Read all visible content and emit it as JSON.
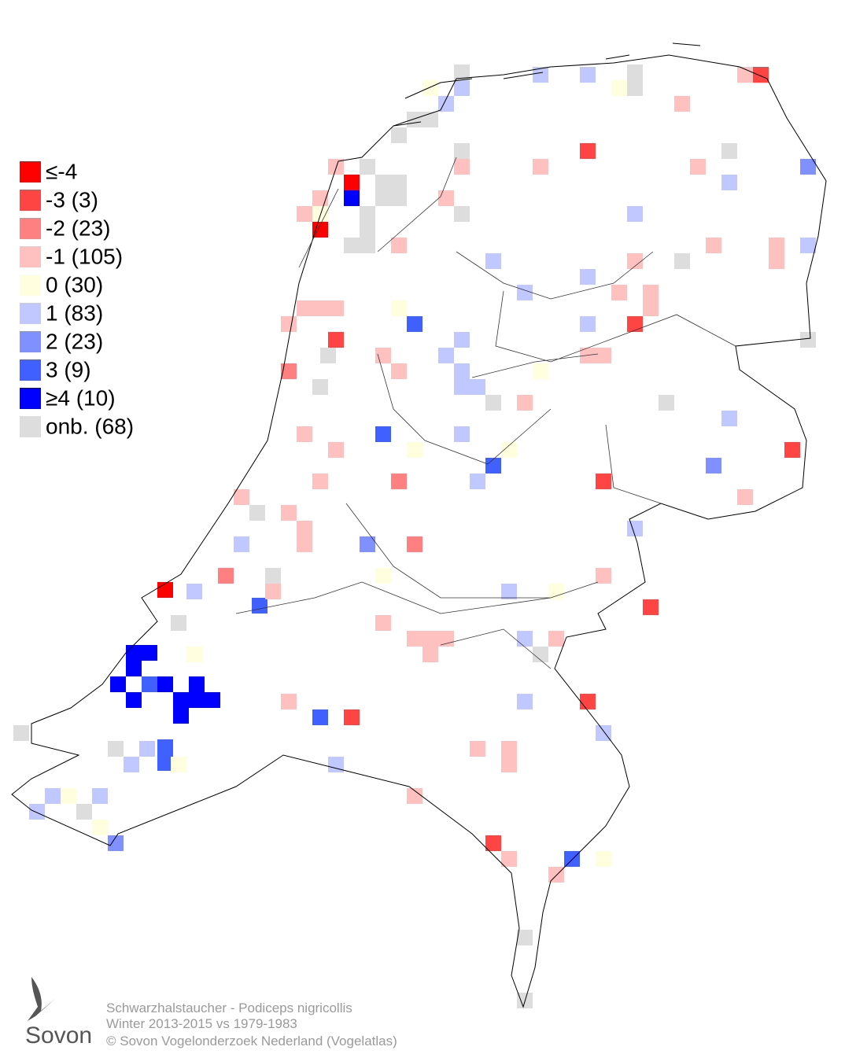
{
  "legend": [
    {
      "label": "≤-4",
      "color": "#ff0000"
    },
    {
      "label": "-3 (3)",
      "color": "#ff4444"
    },
    {
      "label": "-2 (23)",
      "color": "#ff8080"
    },
    {
      "label": "-1 (105)",
      "color": "#ffc0c0"
    },
    {
      "label": " 0 (30)",
      "color": "#ffffe0"
    },
    {
      "label": " 1 (83)",
      "color": "#c0c8ff"
    },
    {
      "label": " 2 (23)",
      "color": "#8090ff"
    },
    {
      "label": " 3 (9)",
      "color": "#4060ff"
    },
    {
      "label": "≥4 (10)",
      "color": "#0000ff"
    },
    {
      "label": "onb. (68)",
      "color": "#dddddd"
    }
  ],
  "caption": {
    "species": "Schwarzhalstaucher - Podiceps nigricollis",
    "period": "Winter 2013-2015 vs 1979-1983",
    "copyright": "© Sovon Vogelonderzoek Nederland (Vogelatlas)"
  },
  "logo": {
    "text": "Sovon"
  }
}
